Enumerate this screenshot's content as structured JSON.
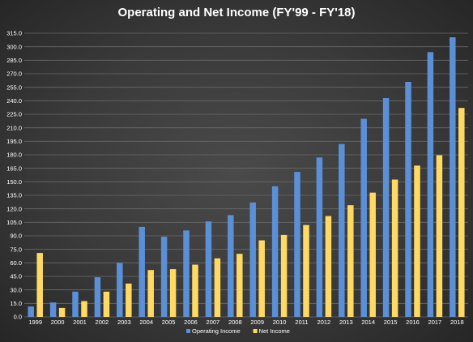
{
  "chart_data": {
    "type": "bar",
    "title": "Operating and Net Income (FY'99 - FY'18)",
    "xlabel": "",
    "ylabel": "",
    "ylim": [
      0,
      315
    ],
    "ytick_step": 15,
    "grid": true,
    "legend_position": "bottom",
    "categories": [
      "1999",
      "2000",
      "2001",
      "2002",
      "2003",
      "2004",
      "2005",
      "2006",
      "2007",
      "2008",
      "2009",
      "2010",
      "2011",
      "2012",
      "2013",
      "2014",
      "2015",
      "2016",
      "2017",
      "2018"
    ],
    "series": [
      {
        "name": "Operating Income",
        "color": "#5b8fd6",
        "values": [
          11.5,
          16.0,
          28.0,
          44.0,
          60.0,
          100.0,
          89.0,
          96.0,
          106.0,
          113.0,
          127.0,
          145.0,
          161.0,
          177.0,
          192.0,
          220.0,
          243.0,
          261.0,
          294.0,
          310.5
        ]
      },
      {
        "name": "Net Income",
        "color": "#ffd966",
        "values": [
          71.0,
          10.0,
          17.5,
          28.0,
          37.0,
          52.0,
          53.0,
          58.0,
          65.0,
          70.0,
          85.0,
          91.0,
          102.0,
          112.0,
          124.0,
          138.0,
          152.5,
          168.0,
          179.5,
          232.0
        ]
      }
    ],
    "ytick_labels": [
      "0.0",
      "15.0",
      "30.0",
      "45.0",
      "60.0",
      "75.0",
      "90.0",
      "105.0",
      "120.0",
      "135.0",
      "150.0",
      "165.0",
      "180.0",
      "195.0",
      "210.0",
      "225.0",
      "240.0",
      "255.0",
      "270.0",
      "285.0",
      "300.0",
      "315.0"
    ]
  }
}
